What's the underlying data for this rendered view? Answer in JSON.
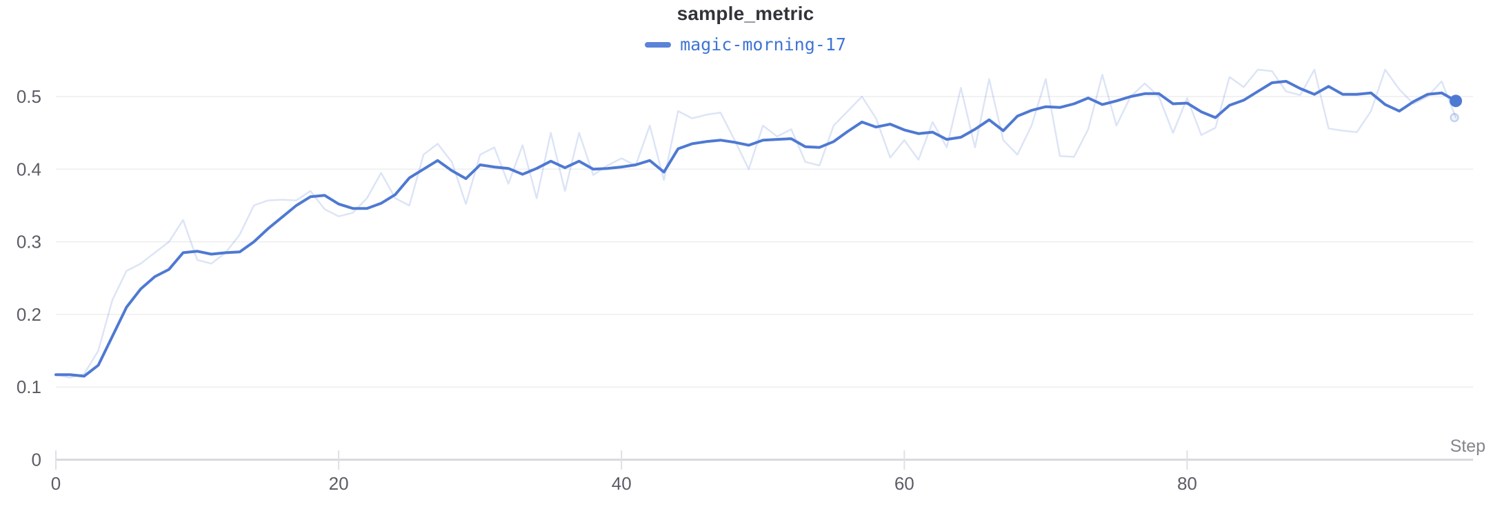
{
  "header": {
    "title": "sample_metric"
  },
  "legend": {
    "items": [
      {
        "label": "magic-morning-17",
        "color": "#4e79d2",
        "swatch_color": "#5b83d9"
      }
    ]
  },
  "axes": {
    "x": {
      "label": "Step",
      "ticks": [
        0,
        20,
        40,
        60,
        80
      ],
      "range": [
        0,
        99
      ]
    },
    "y": {
      "ticks": [
        0,
        0.1,
        0.2,
        0.3,
        0.4,
        0.5
      ],
      "tick_labels": [
        "0",
        "0.1",
        "0.2",
        "0.3",
        "0.4",
        "0.5"
      ],
      "range": [
        0,
        0.56
      ]
    }
  },
  "colors": {
    "accent": "#4e79d2",
    "raw_line_opacity": 0.2,
    "gridline": "#ededf0",
    "axis_line": "#d9d9de",
    "tick_mark": "#e0e0e4",
    "tick_label": "#5c5c66",
    "axis_name_label": "#84848d",
    "title_text": "#33343a",
    "legend_text": "#3f74d6",
    "background": "#ffffff"
  },
  "chart_data": {
    "type": "line",
    "title": "sample_metric",
    "xlabel": "Step",
    "ylabel": "",
    "x_range": [
      0,
      99
    ],
    "ylim": [
      0,
      0.56
    ],
    "x_ticks": [
      0,
      20,
      40,
      60,
      80
    ],
    "y_ticks": [
      0,
      0.1,
      0.2,
      0.3,
      0.4,
      0.5
    ],
    "grid": "horizontal",
    "legend_position": "top-center",
    "x_start": 0,
    "x_step_increment": 1,
    "series": [
      {
        "name": "magic-morning-17",
        "role": "smoothed",
        "color": "#4e79d2",
        "opacity": 1,
        "end_marker": "filled-dot",
        "values": [
          0.117,
          0.117,
          0.115,
          0.13,
          0.17,
          0.21,
          0.235,
          0.252,
          0.262,
          0.285,
          0.287,
          0.283,
          0.285,
          0.286,
          0.3,
          0.318,
          0.334,
          0.35,
          0.362,
          0.364,
          0.352,
          0.346,
          0.346,
          0.353,
          0.365,
          0.388,
          0.4,
          0.412,
          0.398,
          0.387,
          0.406,
          0.403,
          0.401,
          0.393,
          0.401,
          0.411,
          0.402,
          0.411,
          0.4,
          0.401,
          0.403,
          0.406,
          0.412,
          0.396,
          0.428,
          0.435,
          0.438,
          0.44,
          0.437,
          0.433,
          0.44,
          0.441,
          0.442,
          0.431,
          0.43,
          0.438,
          0.452,
          0.465,
          0.458,
          0.462,
          0.454,
          0.449,
          0.451,
          0.441,
          0.444,
          0.455,
          0.468,
          0.453,
          0.473,
          0.481,
          0.486,
          0.485,
          0.49,
          0.498,
          0.489,
          0.494,
          0.5,
          0.504,
          0.504,
          0.49,
          0.491,
          0.479,
          0.471,
          0.488,
          0.495,
          0.507,
          0.519,
          0.521,
          0.511,
          0.503,
          0.514,
          0.503,
          0.503,
          0.505,
          0.489,
          0.48,
          0.493,
          0.503,
          0.505,
          0.494
        ]
      },
      {
        "name": "magic-morning-17 (original, unsmoothed)",
        "role": "raw",
        "color": "#4e79d2",
        "opacity": 0.2,
        "end_marker": "hollow-dot",
        "values": [
          0.117,
          0.113,
          0.118,
          0.15,
          0.22,
          0.26,
          0.27,
          0.285,
          0.3,
          0.33,
          0.275,
          0.27,
          0.285,
          0.31,
          0.35,
          0.357,
          0.358,
          0.357,
          0.37,
          0.345,
          0.335,
          0.34,
          0.36,
          0.395,
          0.36,
          0.35,
          0.42,
          0.435,
          0.41,
          0.352,
          0.42,
          0.43,
          0.38,
          0.433,
          0.36,
          0.45,
          0.37,
          0.45,
          0.392,
          0.405,
          0.415,
          0.405,
          0.46,
          0.385,
          0.48,
          0.47,
          0.475,
          0.478,
          0.44,
          0.4,
          0.46,
          0.445,
          0.455,
          0.41,
          0.405,
          0.46,
          0.48,
          0.5,
          0.47,
          0.416,
          0.44,
          0.413,
          0.465,
          0.43,
          0.512,
          0.43,
          0.524,
          0.44,
          0.42,
          0.46,
          0.524,
          0.418,
          0.417,
          0.455,
          0.53,
          0.46,
          0.5,
          0.518,
          0.5,
          0.45,
          0.498,
          0.447,
          0.457,
          0.527,
          0.513,
          0.537,
          0.535,
          0.507,
          0.502,
          0.537,
          0.456,
          0.453,
          0.451,
          0.48,
          0.537,
          0.51,
          0.49,
          0.5,
          0.521,
          0.471
        ]
      }
    ]
  }
}
